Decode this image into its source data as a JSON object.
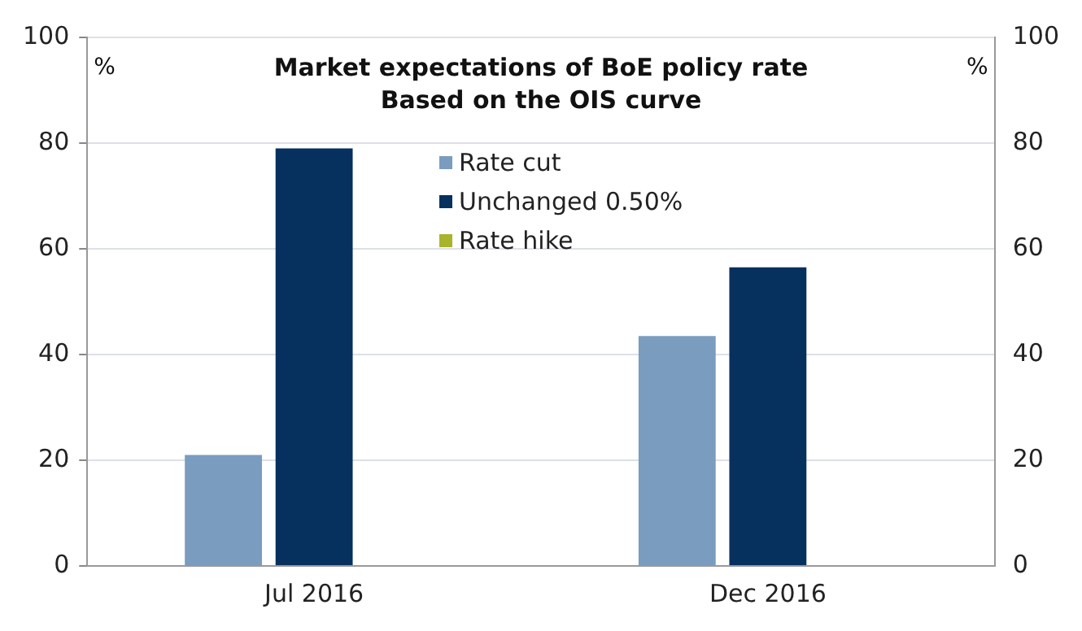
{
  "chart_data": {
    "type": "bar",
    "title": "Market expectations of BoE policy rate",
    "subtitle": "Based on the OIS curve",
    "ylabel": "%",
    "y2label": "%",
    "categories": [
      "Jul 2016",
      "Dec 2016"
    ],
    "series": [
      {
        "name": "Rate cut",
        "color": "#7a9cbf",
        "values": [
          21,
          43.5
        ]
      },
      {
        "name": "Unchanged 0.50%",
        "color": "#06305e",
        "values": [
          79,
          56.5
        ]
      },
      {
        "name": "Rate hike",
        "color": "#a8b42a",
        "values": [
          0,
          0
        ]
      }
    ],
    "ylim": [
      0,
      100
    ],
    "yticks": [
      0,
      20,
      40,
      60,
      80,
      100
    ],
    "y2lim": [
      0,
      100
    ],
    "y2ticks": [
      0,
      20,
      40,
      60,
      80,
      100
    ],
    "grid": "y",
    "legend": "top"
  }
}
